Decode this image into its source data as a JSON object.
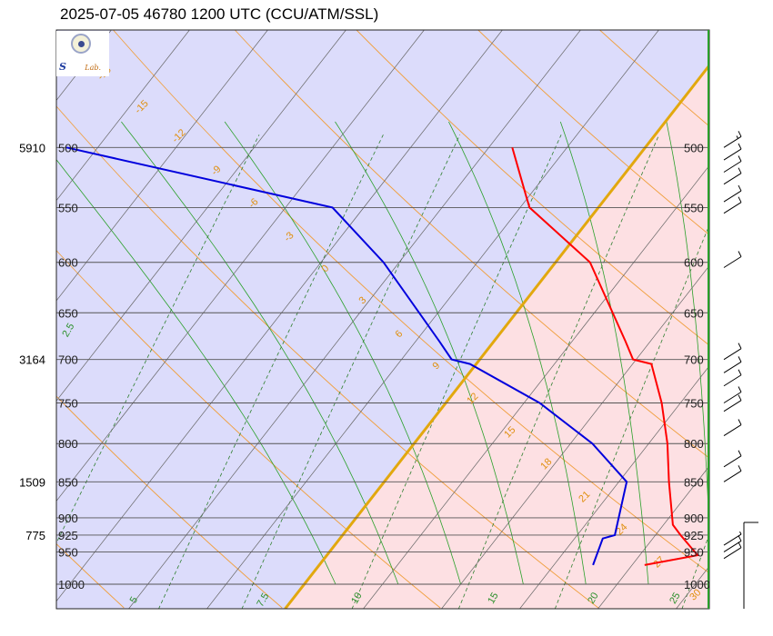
{
  "title": "2025-07-05 46780 1200 UTC (CCU/ATM/SSL)",
  "logo": {
    "lettering": "SSL Lab."
  },
  "colors": {
    "cold_region": "#dcdcfb",
    "warm_region": "#fde0e3",
    "isotherm_zero": "#e2a80e",
    "dry_adiabat": "#f0a040",
    "moist_adiabat": "#2aa02a",
    "mixing_ratio": "#2f7f2f",
    "isobar": "#555555",
    "temperature": "#ff0000",
    "dewpoint": "#0000dd",
    "wind_barb": "#000000"
  },
  "chart_data": {
    "type": "skew-t log-p",
    "pressure_axis_hpa": [
      500,
      550,
      600,
      650,
      700,
      750,
      800,
      850,
      900,
      925,
      950,
      1000
    ],
    "height_labels": [
      {
        "pressure": 500,
        "height": "5910"
      },
      {
        "pressure": 700,
        "height": "3164"
      },
      {
        "pressure": 850,
        "height": "1509"
      },
      {
        "pressure": 925,
        "height": "775"
      }
    ],
    "temperature_range_c": [
      -10,
      30
    ],
    "temperature_profile": [
      {
        "p": 970,
        "t": 20.8
      },
      {
        "p": 955,
        "t": 23.7
      },
      {
        "p": 925,
        "t": 21.6
      },
      {
        "p": 910,
        "t": 20.6
      },
      {
        "p": 850,
        "t": 18.2
      },
      {
        "p": 800,
        "t": 16.2
      },
      {
        "p": 750,
        "t": 13.8
      },
      {
        "p": 705,
        "t": 11.2
      },
      {
        "p": 700,
        "t": 9.8
      },
      {
        "p": 680,
        "t": 8.4
      },
      {
        "p": 600,
        "t": 2.2
      },
      {
        "p": 550,
        "t": -4.4
      },
      {
        "p": 540,
        "t": -5.2
      },
      {
        "p": 500,
        "t": -8.5
      }
    ],
    "dewpoint_profile": [
      {
        "p": 970,
        "t": 17.5
      },
      {
        "p": 930,
        "t": 16.8
      },
      {
        "p": 925,
        "t": 17.4
      },
      {
        "p": 850,
        "t": 15.5
      },
      {
        "p": 800,
        "t": 11.4
      },
      {
        "p": 750,
        "t": 6.0
      },
      {
        "p": 705,
        "t": -0.4
      },
      {
        "p": 700,
        "t": -1.8
      },
      {
        "p": 680,
        "t": -3.5
      },
      {
        "p": 600,
        "t": -11.0
      },
      {
        "p": 550,
        "t": -17.0
      },
      {
        "p": 500,
        "t": -37.0
      }
    ],
    "isotherm_labels": [
      "5",
      "7.5",
      "10",
      "15",
      "20",
      "25"
    ],
    "dry_adiabat_labels": [
      "-18",
      "-15",
      "-12",
      "-9",
      "-6",
      "-3",
      "0",
      "3",
      "6",
      "9",
      "12",
      "15",
      "18",
      "21",
      "24",
      "27",
      "30"
    ],
    "mixing_ratio_labels": [
      "2.5"
    ],
    "wind_barbs": [
      {
        "p": 500,
        "speed_kt": 15
      },
      {
        "p": 510,
        "speed_kt": 10
      },
      {
        "p": 520,
        "speed_kt": 10
      },
      {
        "p": 530,
        "speed_kt": 10
      },
      {
        "p": 545,
        "speed_kt": 10
      },
      {
        "p": 555,
        "speed_kt": 10
      },
      {
        "p": 605,
        "speed_kt": 10
      },
      {
        "p": 700,
        "speed_kt": 10
      },
      {
        "p": 715,
        "speed_kt": 10
      },
      {
        "p": 730,
        "speed_kt": 10
      },
      {
        "p": 750,
        "speed_kt": 10
      },
      {
        "p": 760,
        "speed_kt": 10
      },
      {
        "p": 790,
        "speed_kt": 10
      },
      {
        "p": 830,
        "speed_kt": 10
      },
      {
        "p": 850,
        "speed_kt": 10
      },
      {
        "p": 940,
        "speed_kt": 5
      },
      {
        "p": 950,
        "speed_kt": 10
      },
      {
        "p": 960,
        "speed_kt": 10
      }
    ]
  }
}
